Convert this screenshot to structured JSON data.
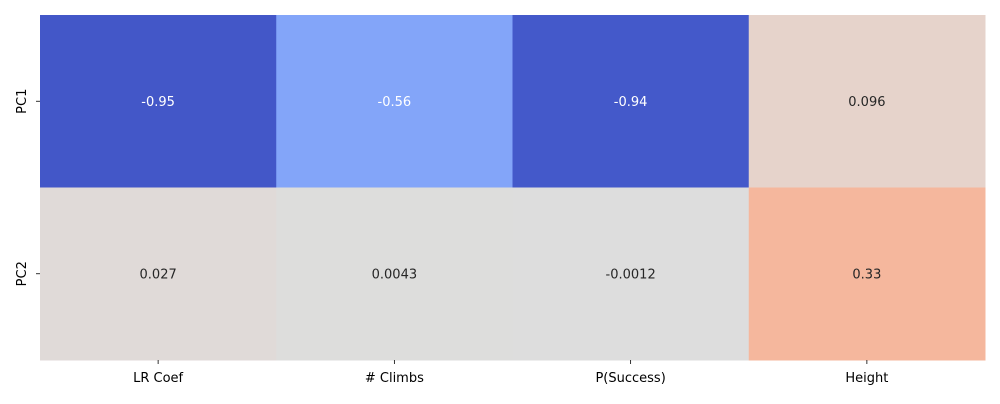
{
  "chart_data": {
    "type": "heatmap",
    "title": "",
    "xlabel": "",
    "ylabel": "",
    "x_categories": [
      "LR Coef",
      "# Climbs",
      "P(Success)",
      "Height"
    ],
    "y_categories": [
      "PC1",
      "PC2"
    ],
    "values": [
      [
        -0.95,
        -0.56,
        -0.94,
        0.096
      ],
      [
        0.027,
        0.0043,
        -0.0012,
        0.33
      ]
    ],
    "value_labels": [
      [
        "-0.95",
        "-0.56",
        "-0.94",
        "0.096"
      ],
      [
        "0.027",
        "0.0043",
        "-0.0012",
        "0.33"
      ]
    ],
    "colormap": "coolwarm",
    "value_range": [
      -1,
      1
    ],
    "colorbar": false,
    "annotations": true,
    "grid": false
  }
}
